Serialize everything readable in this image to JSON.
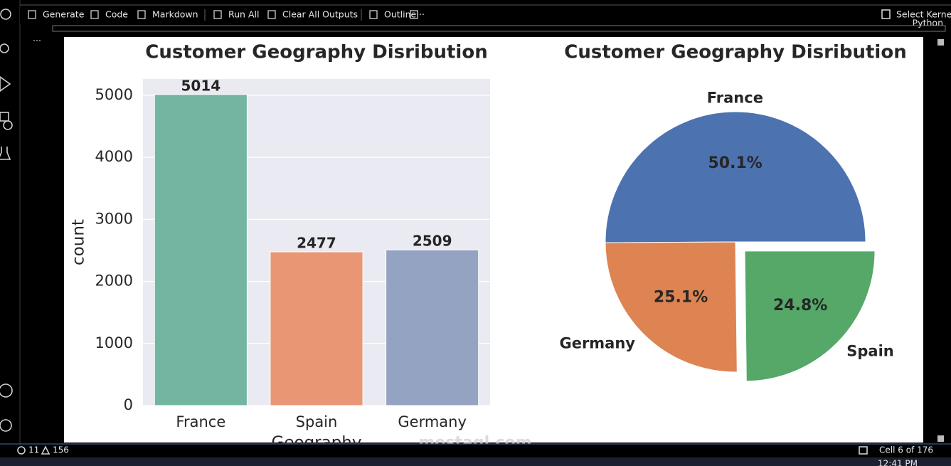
{
  "toolbar": [
    "Generate",
    "Code",
    "Markdown",
    "Run All",
    "Clear All Outputs",
    "Outline",
    "···"
  ],
  "kernel": "Select Kernel",
  "language": "Python",
  "cell_menu": "···",
  "watermark": "mostaql.com",
  "status": {
    "errors": "11",
    "warnings": "156",
    "cell": "Cell 6 of 176"
  },
  "clock": "12:41 PM",
  "chart_data": [
    {
      "type": "bar",
      "title": "Customer Geography Disribution",
      "categories": [
        "France",
        "Spain",
        "Germany"
      ],
      "values": [
        5014,
        2477,
        2509
      ],
      "colors": [
        "#72b6a1",
        "#e99675",
        "#95a3c3"
      ],
      "x_label": "Geography",
      "y_label": "count",
      "ylim": [
        0,
        5264
      ],
      "yticks": [
        0,
        1000,
        2000,
        3000,
        4000,
        5000
      ],
      "grid": true
    },
    {
      "type": "pie",
      "title": "Customer Geography Disribution",
      "categories": [
        "France",
        "Germany",
        "Spain"
      ],
      "values": [
        50.1,
        25.1,
        24.8
      ],
      "value_labels": [
        "50.1%",
        "25.1%",
        "24.8%"
      ],
      "colors": [
        "#4c72b0",
        "#dd8452",
        "#55a868"
      ],
      "explode": [
        0,
        0,
        0.1
      ]
    }
  ]
}
